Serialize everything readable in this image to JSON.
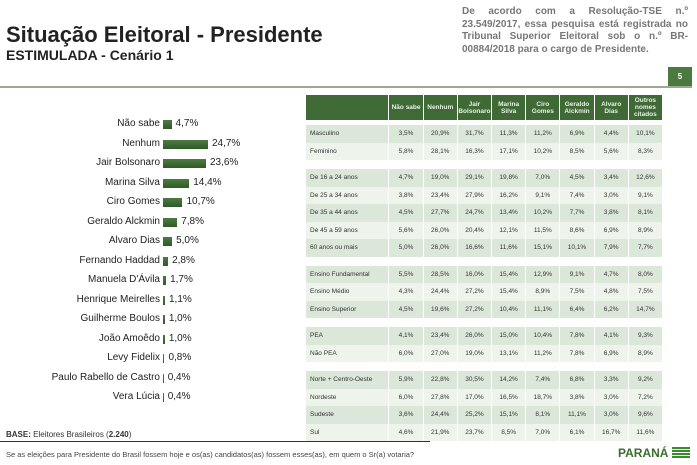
{
  "header": {
    "title": "Situação Eleitoral - Presidente",
    "subtitle": "ESTIMULADA - Cenário 1",
    "note": "De acordo com a Resolução-TSE n.º 23.549/2017, essa pesquisa está registrada no Tribunal Superior Eleitoral sob o n.º BR-00884/2018 para o cargo de Presidente.",
    "page": "5"
  },
  "footer": {
    "base_label": "BASE:",
    "base_text": "Eleitores Brasileiros (",
    "base_n": "2.240",
    "base_close": ")",
    "question": "Se as eleições para Presidente do Brasil fossem hoje e os(as) candidatos(as) fossem esses(as), em quem o Sr(a) votaria?",
    "logo": "PARANÁ"
  },
  "colors": {
    "bar": "#3b6a32",
    "header": "#3f6a36",
    "row_dark": "#dbe7d8",
    "row_light": "#eef4ec"
  },
  "chart_data": {
    "type": "bar",
    "orientation": "horizontal",
    "categories": [
      "Não sabe",
      "Nenhum",
      "Jair Bolsonaro",
      "Marina Silva",
      "Ciro Gomes",
      "Geraldo Alckmin",
      "Alvaro Dias",
      "Fernando Haddad",
      "Manuela D'Ávila",
      "Henrique Meirelles",
      "Guilherme Boulos",
      "João Amoêdo",
      "Levy Fidelix",
      "Paulo Rabello de Castro",
      "Vera Lúcia"
    ],
    "values": [
      4.7,
      24.7,
      23.6,
      14.4,
      10.7,
      7.8,
      5.0,
      2.8,
      1.7,
      1.1,
      1.0,
      1.0,
      0.8,
      0.4,
      0.4
    ],
    "labels": [
      "4,7%",
      "24,7%",
      "23,6%",
      "14,4%",
      "10,7%",
      "7,8%",
      "5,0%",
      "2,8%",
      "1,7%",
      "1,1%",
      "1,0%",
      "1,0%",
      "0,8%",
      "0,4%",
      "0,4%"
    ]
  },
  "table": {
    "columns": [
      "Não sabe",
      "Nenhum",
      "Jair Bolsonaro",
      "Marina Silva",
      "Ciro Gomes",
      "Geraldo Alckmin",
      "Alvaro Dias",
      "Outros nomes citados"
    ],
    "groups": [
      [
        {
          "label": "Masculino",
          "values": [
            "3,5%",
            "20,9%",
            "31,7%",
            "11,3%",
            "11,2%",
            "6,9%",
            "4,4%",
            "10,1%"
          ]
        },
        {
          "label": "Feminino",
          "values": [
            "5,8%",
            "28,1%",
            "16,3%",
            "17,1%",
            "10,2%",
            "8,5%",
            "5,6%",
            "8,3%"
          ]
        }
      ],
      [
        {
          "label": "De 16 a 24 anos",
          "values": [
            "4,7%",
            "19,0%",
            "29,1%",
            "19,8%",
            "7,0%",
            "4,5%",
            "3,4%",
            "12,6%"
          ]
        },
        {
          "label": "De 25 a 34 anos",
          "values": [
            "3,8%",
            "23,4%",
            "27,9%",
            "16,2%",
            "9,1%",
            "7,4%",
            "3,0%",
            "9,1%"
          ]
        },
        {
          "label": "De 35 a 44 anos",
          "values": [
            "4,5%",
            "27,7%",
            "24,7%",
            "13,4%",
            "10,2%",
            "7,7%",
            "3,8%",
            "8,1%"
          ]
        },
        {
          "label": "De 45 a 59 anos",
          "values": [
            "5,6%",
            "26,0%",
            "20,4%",
            "12,1%",
            "11,5%",
            "8,6%",
            "6,9%",
            "8,9%"
          ]
        },
        {
          "label": "60 anos ou mais",
          "values": [
            "5,0%",
            "26,0%",
            "16,6%",
            "11,6%",
            "15,1%",
            "10,1%",
            "7,9%",
            "7,7%"
          ]
        }
      ],
      [
        {
          "label": "Ensino Fundamental",
          "values": [
            "5,5%",
            "28,5%",
            "16,0%",
            "15,4%",
            "12,9%",
            "9,1%",
            "4,7%",
            "8,0%"
          ]
        },
        {
          "label": "Ensino Médio",
          "values": [
            "4,3%",
            "24,4%",
            "27,2%",
            "15,4%",
            "8,9%",
            "7,5%",
            "4,8%",
            "7,5%"
          ]
        },
        {
          "label": "Ensino Superior",
          "values": [
            "4,5%",
            "19,6%",
            "27,2%",
            "10,4%",
            "11,1%",
            "6,4%",
            "6,2%",
            "14,7%"
          ]
        }
      ],
      [
        {
          "label": "PEA",
          "values": [
            "4,1%",
            "23,4%",
            "26,0%",
            "15,0%",
            "10,4%",
            "7,8%",
            "4,1%",
            "9,3%"
          ]
        },
        {
          "label": "Não PEA",
          "values": [
            "6,0%",
            "27,0%",
            "19,0%",
            "13,1%",
            "11,2%",
            "7,8%",
            "6,9%",
            "8,9%"
          ]
        }
      ],
      [
        {
          "label": "Norte + Centro-Oeste",
          "values": [
            "5,9%",
            "22,8%",
            "30,5%",
            "14,2%",
            "7,4%",
            "6,8%",
            "3,3%",
            "9,2%"
          ]
        },
        {
          "label": "Nordeste",
          "values": [
            "6,0%",
            "27,8%",
            "17,0%",
            "16,5%",
            "18,7%",
            "3,8%",
            "3,0%",
            "7,2%"
          ]
        },
        {
          "label": "Sudeste",
          "values": [
            "3,6%",
            "24,4%",
            "25,2%",
            "15,1%",
            "8,1%",
            "11,1%",
            "3,0%",
            "9,6%"
          ]
        },
        {
          "label": "Sul",
          "values": [
            "4,6%",
            "21,9%",
            "23,7%",
            "8,5%",
            "7,0%",
            "6,1%",
            "16,7%",
            "11,6%"
          ]
        }
      ]
    ]
  }
}
